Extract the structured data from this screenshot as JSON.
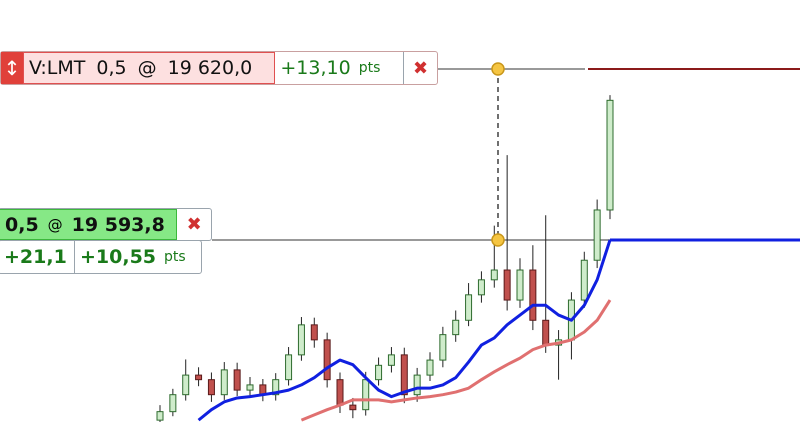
{
  "orders": [
    {
      "label": "V:LMT",
      "quantity": "0,5",
      "at": "@",
      "price": {
        "value": 19620,
        "label": "19 620,0"
      },
      "pnl": "+13,10",
      "unit": "pts"
    },
    {
      "quantity": "0,5",
      "at": "@",
      "price": {
        "value": 19593.8,
        "label": "19 593,8"
      },
      "pnl_ticks": "+21,1",
      "pnl": "+10,55",
      "unit": "pts"
    }
  ],
  "chart": {
    "open": [
      19566.2,
      19567.5,
      19570.1,
      19573.1,
      19572.4,
      19570.1,
      19573.9,
      19570.8,
      19571.6,
      19570.1,
      19572.4,
      19576.2,
      19580.8,
      19578.5,
      19572.4,
      19568.5,
      19567.8,
      19572.4,
      19574.6,
      19576.2,
      19570.1,
      19573.1,
      19575.4,
      19579.3,
      19581.5,
      19585.4,
      19587.7,
      19589.2,
      19584.6,
      19589.2,
      19581.5,
      19577.7,
      19578.5,
      19584.6,
      19590.7,
      19598.4
    ],
    "high": [
      19568.5,
      19571.0,
      19575.5,
      19574.3,
      19573.5,
      19575.1,
      19575.0,
      19572.8,
      19572.5,
      19573.4,
      19577.4,
      19582.0,
      19581.9,
      19579.6,
      19573.5,
      19569.6,
      19573.6,
      19575.8,
      19577.4,
      19577.3,
      19574.2,
      19576.6,
      19580.5,
      19583.0,
      19587.2,
      19589.0,
      19596.0,
      19606.8,
      19591.0,
      19593.0,
      19597.6,
      19580.0,
      19585.8,
      19592.0,
      19600.0,
      19616.0
    ],
    "low": [
      19565.5,
      19566.8,
      19569.2,
      19571.4,
      19569.0,
      19569.3,
      19569.9,
      19569.7,
      19569.1,
      19569.2,
      19571.5,
      19575.3,
      19577.3,
      19571.2,
      19567.3,
      19566.5,
      19566.9,
      19571.5,
      19573.5,
      19568.8,
      19569.0,
      19572.2,
      19574.3,
      19578.2,
      19580.6,
      19584.2,
      19586.5,
      19583.0,
      19583.4,
      19580.0,
      19576.5,
      19572.4,
      19575.5,
      19583.4,
      19589.5,
      19597.0
    ],
    "close": [
      19567.5,
      19570.1,
      19573.1,
      19572.4,
      19570.1,
      19573.9,
      19570.8,
      19571.6,
      19570.1,
      19572.4,
      19576.2,
      19580.8,
      19578.5,
      19572.4,
      19568.5,
      19567.8,
      19572.4,
      19574.6,
      19576.2,
      19570.1,
      19573.1,
      19575.4,
      19579.3,
      19581.5,
      19585.4,
      19587.7,
      19589.2,
      19584.6,
      19589.2,
      19581.5,
      19577.7,
      19578.5,
      19584.6,
      19590.7,
      19598.4,
      19615.2
    ],
    "ma_fast": [
      null,
      null,
      null,
      19566.2,
      19567.8,
      19569.0,
      19569.6,
      19569.8,
      19570.1,
      19570.4,
      19570.8,
      19571.6,
      19572.7,
      19574.2,
      19575.4,
      19574.7,
      19572.7,
      19570.8,
      19569.8,
      19570.5,
      19571.1,
      19571.1,
      19571.6,
      19572.7,
      19575.1,
      19577.7,
      19578.8,
      19580.8,
      19582.3,
      19583.8,
      19583.8,
      19582.3,
      19581.5,
      19583.8,
      19587.7,
      19593.8
    ],
    "ma_slow": [
      null,
      null,
      null,
      null,
      null,
      null,
      null,
      null,
      null,
      null,
      null,
      19566.2,
      19567.0,
      19567.8,
      19568.5,
      19569.3,
      19569.3,
      19569.3,
      19569.0,
      19569.3,
      19569.6,
      19569.8,
      19570.1,
      19570.5,
      19571.1,
      19572.4,
      19573.6,
      19574.7,
      19575.7,
      19577.0,
      19577.7,
      19578.0,
      19578.5,
      19579.7,
      19581.5,
      19584.6
    ]
  }
}
